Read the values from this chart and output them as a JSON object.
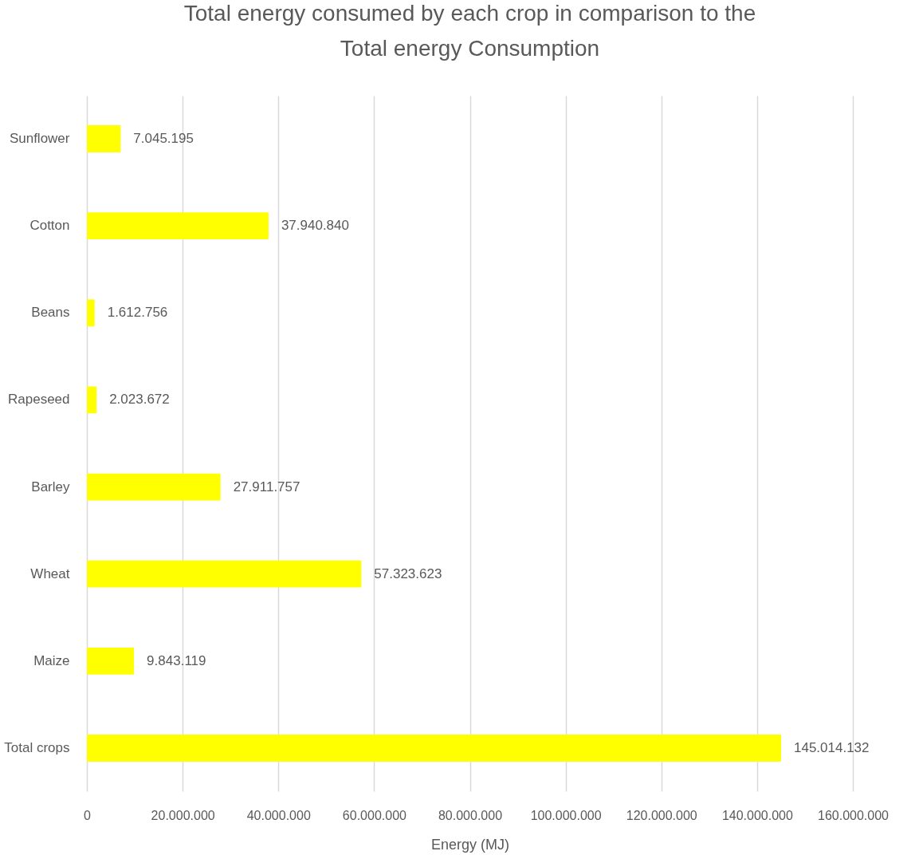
{
  "chart_data": {
    "type": "bar",
    "orientation": "horizontal",
    "title": "Total energy consumed by each crop in comparison to the Total energy Consumption",
    "xlabel": "Energy (MJ)",
    "categories": [
      "Sunflower",
      "Cotton",
      "Beans",
      "Rapeseed",
      "Barley",
      "Wheat",
      "Maize",
      "Total crops"
    ],
    "values": [
      7045195,
      37940840,
      1612756,
      2023672,
      27911757,
      57323623,
      9843119,
      145014132
    ],
    "value_labels": [
      "7.045.195",
      "37.940.840",
      "1.612.756",
      "2.023.672",
      "27.911.757",
      "57.323.623",
      "9.843.119",
      "145.014.132"
    ],
    "color": "#ffff00",
    "xlim": [
      0,
      160000000
    ],
    "xticks": [
      0,
      {
        "value": 20000000,
        "label": "20.000.000"
      },
      {
        "value": 40000000,
        "label": "40.000.000"
      },
      {
        "value": 60000000,
        "label": "60.000.000"
      },
      {
        "value": 80000000,
        "label": "80.000.000"
      },
      {
        "value": 100000000,
        "label": "100.000.000"
      },
      {
        "value": 120000000,
        "label": "120.000.000"
      },
      {
        "value": 140000000,
        "label": "140.000.000"
      },
      {
        "value": 160000000,
        "label": "160.000.000"
      }
    ],
    "grid": "x"
  }
}
